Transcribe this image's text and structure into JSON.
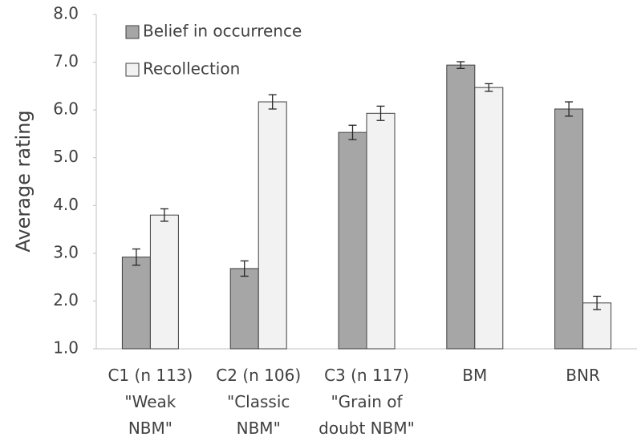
{
  "chart_data": {
    "type": "bar",
    "y_label": "Average rating",
    "categories": [
      "C1 (n 113)\n\"Weak\nNBM\"",
      "C2 (n 106)\n\"Classic\nNBM\"",
      "C3 (n 117)\n\"Grain of\ndoubt NBM\"",
      "BM",
      "BNR"
    ],
    "series": [
      {
        "name": "Belief in occurrence",
        "color": "#a6a6a6",
        "values": [
          2.92,
          2.68,
          5.53,
          6.94,
          6.02
        ],
        "errors": [
          0.17,
          0.16,
          0.15,
          0.07,
          0.15
        ]
      },
      {
        "name": "Recollection",
        "color": "#f2f2f2",
        "values": [
          3.8,
          6.17,
          5.93,
          6.47,
          1.96
        ],
        "errors": [
          0.13,
          0.15,
          0.15,
          0.08,
          0.14
        ]
      }
    ],
    "ylim": [
      1,
      8
    ],
    "yticks": [
      {
        "value": 1,
        "label": "1.0"
      },
      {
        "value": 2,
        "label": "2.0"
      },
      {
        "value": 3,
        "label": "3.0"
      },
      {
        "value": 4,
        "label": "4.0"
      },
      {
        "value": 5,
        "label": "5.0"
      },
      {
        "value": 6,
        "label": "6.0"
      },
      {
        "value": 7,
        "label": "7.0"
      },
      {
        "value": 8,
        "label": "8.0"
      }
    ],
    "grid": false,
    "legend": "top-left"
  }
}
